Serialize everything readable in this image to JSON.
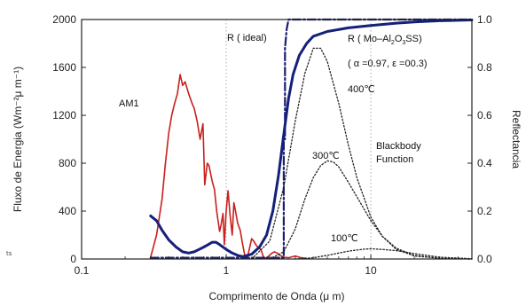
{
  "chart_data": {
    "type": "line",
    "xlabel": "Comprimento de Onda (μ m)",
    "ylabel_left": "Fluxo de Energia (Wm⁻²μ m⁻¹)",
    "ylabel_right": "Reflectancia",
    "x_scale": "log",
    "xlim": [
      0.1,
      50
    ],
    "ylim_left": [
      0,
      2000
    ],
    "ylim_right": [
      0,
      1.0
    ],
    "grid": "vertical dotted lines at 1 and 10",
    "x_ticks": [
      {
        "value": 0.1,
        "label": "0.1"
      },
      {
        "value": 1,
        "label": "1"
      },
      {
        "value": 10,
        "label": "10"
      }
    ],
    "y_left_ticks": [
      {
        "value": 0,
        "label": "0"
      },
      {
        "value": 400,
        "label": "400"
      },
      {
        "value": 800,
        "label": "800"
      },
      {
        "value": 1200,
        "label": "1200"
      },
      {
        "value": 1600,
        "label": "1600"
      },
      {
        "value": 2000,
        "label": "2000"
      }
    ],
    "y_right_ticks": [
      {
        "value": 0.0,
        "label": "0.0"
      },
      {
        "value": 0.2,
        "label": "0.2"
      },
      {
        "value": 0.4,
        "label": "0.4"
      },
      {
        "value": 0.6,
        "label": "0.6"
      },
      {
        "value": 0.8,
        "label": "0.8"
      },
      {
        "value": 1.0,
        "label": "1.0"
      }
    ],
    "series": [
      {
        "name": "AM1",
        "axis": "left",
        "color": "#c8201c",
        "style": "solid",
        "points": [
          [
            0.3,
            15
          ],
          [
            0.33,
            200
          ],
          [
            0.36,
            500
          ],
          [
            0.38,
            800
          ],
          [
            0.4,
            1050
          ],
          [
            0.42,
            1200
          ],
          [
            0.44,
            1300
          ],
          [
            0.46,
            1380
          ],
          [
            0.48,
            1540
          ],
          [
            0.5,
            1450
          ],
          [
            0.52,
            1480
          ],
          [
            0.55,
            1380
          ],
          [
            0.58,
            1300
          ],
          [
            0.6,
            1260
          ],
          [
            0.63,
            1150
          ],
          [
            0.66,
            1000
          ],
          [
            0.69,
            1130
          ],
          [
            0.71,
            620
          ],
          [
            0.74,
            800
          ],
          [
            0.76,
            780
          ],
          [
            0.8,
            650
          ],
          [
            0.83,
            580
          ],
          [
            0.86,
            400
          ],
          [
            0.88,
            310
          ],
          [
            0.9,
            230
          ],
          [
            0.92,
            280
          ],
          [
            0.95,
            380
          ],
          [
            0.97,
            120
          ],
          [
            1.0,
            400
          ],
          [
            1.03,
            570
          ],
          [
            1.06,
            380
          ],
          [
            1.1,
            200
          ],
          [
            1.13,
            470
          ],
          [
            1.16,
            400
          ],
          [
            1.2,
            300
          ],
          [
            1.25,
            240
          ],
          [
            1.3,
            120
          ],
          [
            1.34,
            40
          ],
          [
            1.37,
            15
          ],
          [
            1.4,
            10
          ],
          [
            1.45,
            90
          ],
          [
            1.5,
            170
          ],
          [
            1.55,
            150
          ],
          [
            1.62,
            110
          ],
          [
            1.7,
            90
          ],
          [
            1.75,
            70
          ],
          [
            1.8,
            25
          ],
          [
            1.86,
            5
          ],
          [
            1.95,
            20
          ],
          [
            2.05,
            45
          ],
          [
            2.15,
            60
          ],
          [
            2.25,
            50
          ],
          [
            2.35,
            30
          ],
          [
            2.5,
            15
          ],
          [
            2.7,
            10
          ],
          [
            3.0,
            25
          ],
          [
            3.3,
            10
          ],
          [
            3.6,
            5
          ]
        ]
      },
      {
        "name": "R ( ideal)",
        "axis": "right",
        "color": "#1a1f6e",
        "style": "dashdot",
        "points": [
          [
            0.3,
            0.005
          ],
          [
            2.5,
            0.005
          ],
          [
            2.5,
            0.5
          ],
          [
            2.55,
            0.5
          ],
          [
            2.55,
            0.88
          ],
          [
            2.62,
            0.96
          ],
          [
            2.7,
            1.0
          ],
          [
            50,
            1.0
          ]
        ]
      },
      {
        "name": "R ( Mo-Al₂O₃SS)",
        "axis": "right",
        "color": "#14207a",
        "style": "solid",
        "points": [
          [
            0.3,
            0.18
          ],
          [
            0.33,
            0.16
          ],
          [
            0.36,
            0.12
          ],
          [
            0.4,
            0.08
          ],
          [
            0.45,
            0.05
          ],
          [
            0.5,
            0.03
          ],
          [
            0.55,
            0.025
          ],
          [
            0.6,
            0.03
          ],
          [
            0.65,
            0.04
          ],
          [
            0.7,
            0.05
          ],
          [
            0.75,
            0.06
          ],
          [
            0.8,
            0.07
          ],
          [
            0.85,
            0.07
          ],
          [
            0.9,
            0.06
          ],
          [
            1.0,
            0.04
          ],
          [
            1.1,
            0.025
          ],
          [
            1.2,
            0.015
          ],
          [
            1.3,
            0.01
          ],
          [
            1.5,
            0.02
          ],
          [
            1.7,
            0.05
          ],
          [
            1.9,
            0.1
          ],
          [
            2.1,
            0.2
          ],
          [
            2.3,
            0.35
          ],
          [
            2.5,
            0.52
          ],
          [
            2.7,
            0.67
          ],
          [
            2.9,
            0.77
          ],
          [
            3.2,
            0.85
          ],
          [
            3.6,
            0.9
          ],
          [
            4.0,
            0.93
          ],
          [
            5.0,
            0.95
          ],
          [
            7,
            0.965
          ],
          [
            10,
            0.975
          ],
          [
            15,
            0.985
          ],
          [
            20,
            0.99
          ],
          [
            30,
            0.995
          ],
          [
            50,
            0.998
          ]
        ]
      },
      {
        "name": "400℃",
        "axis": "left",
        "color": "#222222",
        "style": "dotted",
        "points": [
          [
            1.5,
            0
          ],
          [
            2.0,
            150
          ],
          [
            2.5,
            600
          ],
          [
            3.0,
            1150
          ],
          [
            3.5,
            1550
          ],
          [
            4.0,
            1760
          ],
          [
            4.5,
            1760
          ],
          [
            5.0,
            1650
          ],
          [
            6.0,
            1300
          ],
          [
            7.0,
            950
          ],
          [
            8.0,
            680
          ],
          [
            10.0,
            350
          ],
          [
            12.0,
            190
          ],
          [
            15.0,
            80
          ],
          [
            20.0,
            25
          ],
          [
            30.0,
            5
          ],
          [
            50.0,
            0
          ]
        ]
      },
      {
        "name": "300℃",
        "axis": "left",
        "color": "#222222",
        "style": "dotted",
        "points": [
          [
            2.0,
            0
          ],
          [
            2.5,
            60
          ],
          [
            3.0,
            250
          ],
          [
            3.5,
            500
          ],
          [
            4.0,
            680
          ],
          [
            4.5,
            780
          ],
          [
            5.0,
            820
          ],
          [
            5.5,
            810
          ],
          [
            6.0,
            770
          ],
          [
            7.0,
            640
          ],
          [
            8.0,
            520
          ],
          [
            10.0,
            320
          ],
          [
            12.0,
            190
          ],
          [
            15.0,
            90
          ],
          [
            20.0,
            30
          ],
          [
            30.0,
            5
          ],
          [
            50.0,
            0
          ]
        ]
      },
      {
        "name": "100℃",
        "axis": "left",
        "color": "#222222",
        "style": "dotted",
        "points": [
          [
            3.0,
            0
          ],
          [
            4.0,
            10
          ],
          [
            5.0,
            30
          ],
          [
            6.0,
            50
          ],
          [
            7.0,
            65
          ],
          [
            8.0,
            75
          ],
          [
            9.0,
            82
          ],
          [
            10.0,
            85
          ],
          [
            12.0,
            80
          ],
          [
            15.0,
            70
          ],
          [
            20.0,
            45
          ],
          [
            30.0,
            15
          ],
          [
            50.0,
            2
          ]
        ]
      }
    ],
    "annotations": {
      "am1": "AM1",
      "r_ideal": "R ( ideal)",
      "r_mo_a": "R ( Mo–Al",
      "r_mo_sub1": "2",
      "r_mo_b": "O",
      "r_mo_sub2": "3",
      "r_mo_c": "SS)",
      "alpha_eps": "( α =0.97,  ε =00.3)",
      "t400": "400℃",
      "t300": "300℃",
      "t100": "100℃",
      "blackbody_1": "Blackbody",
      "blackbody_2": "Function"
    }
  },
  "stray_text": "ts"
}
